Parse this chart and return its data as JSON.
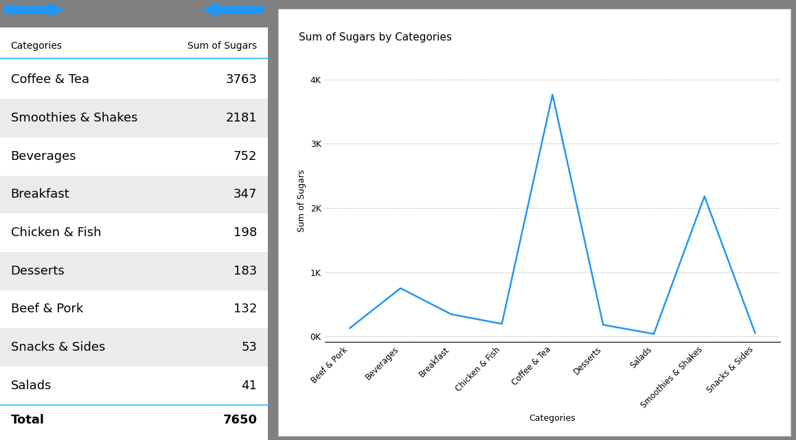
{
  "categories_sorted": [
    "Beef & Pork",
    "Beverages",
    "Breakfast",
    "Chicken & Fish",
    "Coffee & Tea",
    "Desserts",
    "Salads",
    "Smoothies & Shakes",
    "Snacks & Sides"
  ],
  "values_sorted": [
    132,
    752,
    347,
    198,
    3763,
    183,
    41,
    2181,
    53
  ],
  "table_categories": [
    "Coffee & Tea",
    "Smoothies & Shakes",
    "Beverages",
    "Breakfast",
    "Chicken & Fish",
    "Desserts",
    "Beef & Pork",
    "Snacks & Sides",
    "Salads"
  ],
  "table_values": [
    3763,
    2181,
    752,
    347,
    198,
    183,
    132,
    53,
    41
  ],
  "total": 7650,
  "title": "Sum of Sugars by Categories",
  "xlabel": "Categories",
  "ylabel": "Sum of Sugars",
  "col_header_cat": "Categories",
  "col_header_val": "Sum of Sugars",
  "yticks": [
    0,
    1000,
    2000,
    3000,
    4000
  ],
  "ytick_labels": [
    "0K",
    "1K",
    "2K",
    "3K",
    "4K"
  ],
  "line_color": "#2196F3",
  "arrow_color": "#2196F3",
  "header_line_color": "#4fc3f7",
  "total_line_color": "#4fc3f7",
  "title_fontsize": 11,
  "axis_label_fontsize": 9,
  "tick_fontsize": 8.5,
  "table_fontsize": 13
}
